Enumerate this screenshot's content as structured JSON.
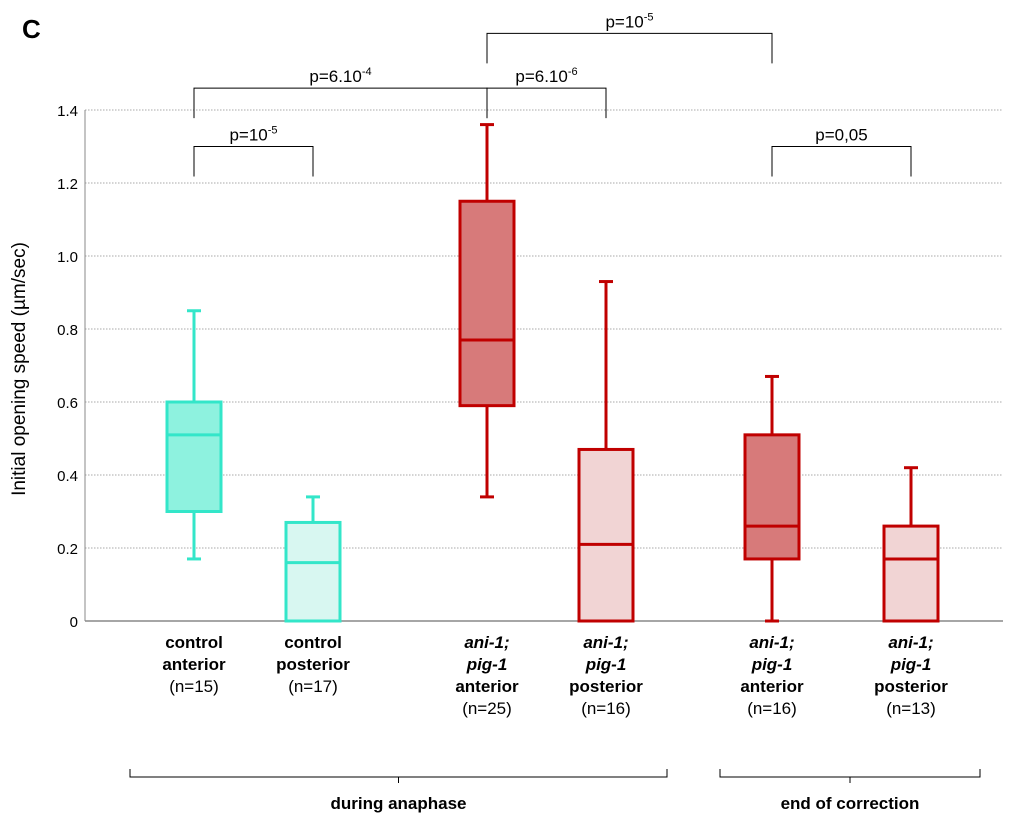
{
  "panel_letter": "C",
  "chart_data": {
    "type": "box",
    "ylabel": "Initial opening speed  (µm/sec)",
    "ylim": [
      0,
      1.4
    ],
    "yticks": [
      {
        "value": 0,
        "label": "0"
      },
      {
        "value": 0.2,
        "label": "0.2"
      },
      {
        "value": 0.4,
        "label": "0.4"
      },
      {
        "value": 0.6,
        "label": "0.6"
      },
      {
        "value": 0.8,
        "label": "0.8"
      },
      {
        "value": 1.0,
        "label": "1.0"
      },
      {
        "value": 1.2,
        "label": "1.2"
      },
      {
        "value": 1.4,
        "label": "1.4"
      }
    ],
    "grid": true,
    "boxes": [
      {
        "line1": "control",
        "line2": "anterior",
        "line3": "",
        "n": "(n=15)",
        "italic_lines": [],
        "min": 0.17,
        "q1": 0.3,
        "median": 0.51,
        "q3": 0.6,
        "max": 0.85,
        "stroke": "#33e6c9",
        "fill": "#8ef2df",
        "position": 1
      },
      {
        "line1": "control",
        "line2": "posterior",
        "line3": "",
        "n": "(n=17)",
        "italic_lines": [],
        "min": 0.0,
        "q1": 0.0,
        "median": 0.16,
        "q3": 0.27,
        "max": 0.34,
        "stroke": "#33e6c9",
        "fill": "#d8f7f1",
        "position": 2
      },
      {
        "line1": "ani-1;",
        "line2": "pig-1",
        "line3": "anterior",
        "n": "(n=25)",
        "italic_lines": [
          1,
          2
        ],
        "min": 0.34,
        "q1": 0.59,
        "median": 0.77,
        "q3": 1.15,
        "max": 1.36,
        "stroke": "#c00000",
        "fill": "#d77a7a",
        "position": 3
      },
      {
        "line1": "ani-1;",
        "line2": "pig-1",
        "line3": "posterior",
        "n": "(n=16)",
        "italic_lines": [
          1,
          2
        ],
        "min": 0.0,
        "q1": 0.0,
        "median": 0.21,
        "q3": 0.47,
        "max": 0.93,
        "stroke": "#c00000",
        "fill": "#f1d4d4",
        "position": 4
      },
      {
        "line1": "ani-1;",
        "line2": "pig-1",
        "line3": "anterior",
        "n": "(n=16)",
        "italic_lines": [
          1,
          2
        ],
        "min": 0.0,
        "q1": 0.17,
        "median": 0.26,
        "q3": 0.51,
        "max": 0.67,
        "stroke": "#c00000",
        "fill": "#d77a7a",
        "position": 5
      },
      {
        "line1": "ani-1;",
        "line2": "pig-1",
        "line3": "posterior",
        "n": "(n=13)",
        "italic_lines": [
          1,
          2
        ],
        "min": 0.0,
        "q1": 0.0,
        "median": 0.17,
        "q3": 0.26,
        "max": 0.42,
        "stroke": "#c00000",
        "fill": "#f1d4d4",
        "position": 6
      }
    ],
    "comparisons": [
      {
        "from": 1,
        "to": 2,
        "base": "p=10",
        "exp": "-5",
        "level": 1.3
      },
      {
        "from": 1,
        "to": 3,
        "base": "p=6.10",
        "exp": "-4",
        "level": 1.46
      },
      {
        "from": 3,
        "to": 4,
        "base": "p=6.10",
        "exp": "-6",
        "level": 1.46
      },
      {
        "from": 3,
        "to": 5,
        "base": "p=10",
        "exp": "-5",
        "level": 1.61
      },
      {
        "from": 5,
        "to": 6,
        "base": "p=0,05",
        "exp": "",
        "level": 1.3
      }
    ],
    "groups": [
      {
        "label": "during anaphase",
        "from_pos": 0.5,
        "to_pos": 4.5
      },
      {
        "label": "end of correction",
        "from_pos": 4.5,
        "to_pos": 6.5
      }
    ]
  }
}
